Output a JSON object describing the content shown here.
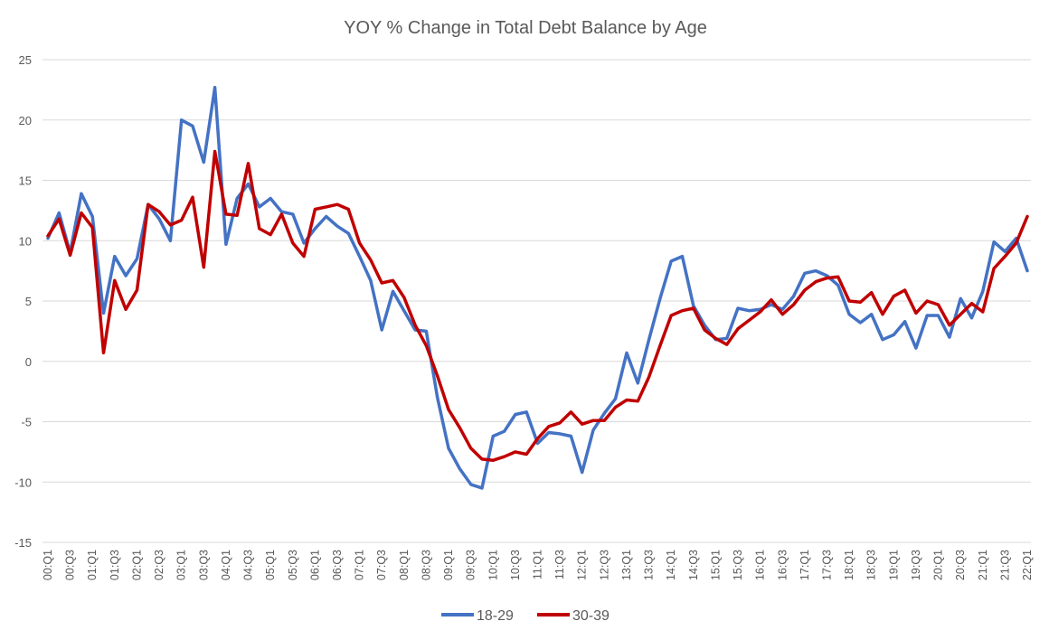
{
  "chart_data": {
    "type": "line",
    "title": "YOY % Change in Total Debt Balance by Age",
    "xlabel": "",
    "ylabel": "",
    "ylim": [
      -15,
      25
    ],
    "yticks": [
      25,
      20,
      15,
      10,
      5,
      0,
      -5,
      -10,
      -15
    ],
    "grid": true,
    "legend_position": "bottom",
    "x": [
      "00:Q1",
      "00:Q2",
      "00:Q3",
      "00:Q4",
      "01:Q1",
      "01:Q2",
      "01:Q3",
      "01:Q4",
      "02:Q1",
      "02:Q2",
      "02:Q3",
      "02:Q4",
      "03:Q1",
      "03:Q2",
      "03:Q3",
      "03:Q4",
      "04:Q1",
      "04:Q2",
      "04:Q3",
      "04:Q4",
      "05:Q1",
      "05:Q2",
      "05:Q3",
      "05:Q4",
      "06:Q1",
      "06:Q2",
      "06:Q3",
      "06:Q4",
      "07:Q1",
      "07:Q2",
      "07:Q3",
      "07:Q4",
      "08:Q1",
      "08:Q2",
      "08:Q3",
      "08:Q4",
      "09:Q1",
      "09:Q2",
      "09:Q3",
      "09:Q4",
      "10:Q1",
      "10:Q2",
      "10:Q3",
      "10:Q4",
      "11:Q1",
      "11:Q2",
      "11:Q3",
      "11:Q4",
      "12:Q1",
      "12:Q2",
      "12:Q3",
      "12:Q4",
      "13:Q1",
      "13:Q2",
      "13:Q3",
      "13:Q4",
      "14:Q1",
      "14:Q2",
      "14:Q3",
      "14:Q4",
      "15:Q1",
      "15:Q2",
      "15:Q3",
      "15:Q4",
      "16:Q1",
      "16:Q2",
      "16:Q3",
      "16:Q4",
      "17:Q1",
      "17:Q2",
      "17:Q3",
      "17:Q4",
      "18:Q1",
      "18:Q2",
      "18:Q3",
      "18:Q4",
      "19:Q1",
      "19:Q2",
      "19:Q3",
      "19:Q4",
      "20:Q1",
      "20:Q2",
      "20:Q3",
      "20:Q4",
      "21:Q1",
      "21:Q2",
      "21:Q3",
      "21:Q4",
      "22:Q1"
    ],
    "x_tick_labels": [
      "00:Q1",
      "00:Q3",
      "01:Q1",
      "01:Q3",
      "02:Q1",
      "02:Q3",
      "03:Q1",
      "03:Q3",
      "04:Q1",
      "04:Q3",
      "05:Q1",
      "05:Q3",
      "06:Q1",
      "06:Q3",
      "07:Q1",
      "07:Q3",
      "08:Q1",
      "08:Q3",
      "09:Q1",
      "09:Q3",
      "10:Q1",
      "10:Q3",
      "11:Q1",
      "11:Q3",
      "12:Q1",
      "12:Q3",
      "13:Q1",
      "13:Q3",
      "14:Q1",
      "14:Q3",
      "15:Q1",
      "15:Q3",
      "16:Q1",
      "16:Q3",
      "17:Q1",
      "17:Q3",
      "18:Q1",
      "18:Q3",
      "19:Q1",
      "19:Q3",
      "20:Q1",
      "20:Q3",
      "21:Q1",
      "21:Q3",
      "22:Q1"
    ],
    "series": [
      {
        "name": "18-29",
        "color": "#4472C4",
        "values": [
          10.2,
          12.3,
          9.0,
          13.9,
          12.0,
          4.0,
          8.7,
          7.1,
          8.5,
          13.0,
          11.8,
          10.0,
          20.0,
          19.5,
          16.5,
          22.7,
          9.7,
          13.5,
          14.7,
          12.8,
          13.5,
          12.4,
          12.2,
          9.8,
          11.0,
          12.0,
          11.2,
          10.6,
          8.7,
          6.7,
          2.6,
          5.8,
          4.2,
          2.6,
          2.5,
          -3.0,
          -7.2,
          -8.9,
          -10.2,
          -10.5,
          -6.2,
          -5.8,
          -4.4,
          -4.2,
          -6.8,
          -5.9,
          -6.0,
          -6.2,
          -9.2,
          -5.7,
          -4.3,
          -3.1,
          0.7,
          -1.8,
          1.8,
          5.2,
          8.3,
          8.7,
          4.6,
          3.0,
          1.8,
          1.9,
          4.4,
          4.2,
          4.3,
          4.7,
          4.3,
          5.4,
          7.3,
          7.5,
          7.1,
          6.3,
          3.9,
          3.2,
          3.9,
          1.8,
          2.2,
          3.3,
          1.1,
          3.8,
          3.8,
          2.0,
          5.2,
          3.6,
          5.8,
          9.9,
          9.1,
          10.2,
          7.5
        ]
      },
      {
        "name": "30-39",
        "color": "#C00000",
        "values": [
          10.4,
          11.8,
          8.8,
          12.3,
          11.1,
          0.7,
          6.7,
          4.3,
          5.9,
          13.0,
          12.4,
          11.3,
          11.7,
          13.6,
          7.8,
          17.4,
          12.2,
          12.1,
          16.4,
          11.0,
          10.5,
          12.2,
          9.8,
          8.7,
          12.6,
          12.8,
          13.0,
          12.6,
          9.8,
          8.4,
          6.5,
          6.7,
          5.3,
          3.0,
          1.3,
          -1.2,
          -4.0,
          -5.5,
          -7.2,
          -8.1,
          -8.2,
          -7.9,
          -7.5,
          -7.7,
          -6.4,
          -5.4,
          -5.1,
          -4.2,
          -5.2,
          -4.9,
          -4.9,
          -3.8,
          -3.2,
          -3.3,
          -1.3,
          1.3,
          3.8,
          4.2,
          4.4,
          2.6,
          1.9,
          1.4,
          2.7,
          3.4,
          4.1,
          5.1,
          3.9,
          4.7,
          5.9,
          6.6,
          6.9,
          7.0,
          5.0,
          4.9,
          5.7,
          3.9,
          5.4,
          5.9,
          4.0,
          5.0,
          4.7,
          3.0,
          3.9,
          4.8,
          4.1,
          7.7,
          8.7,
          9.8,
          12.0
        ]
      }
    ]
  },
  "colors": {
    "gridline": "#D9D9D9",
    "text": "#595959",
    "background": "#FFFFFF"
  }
}
